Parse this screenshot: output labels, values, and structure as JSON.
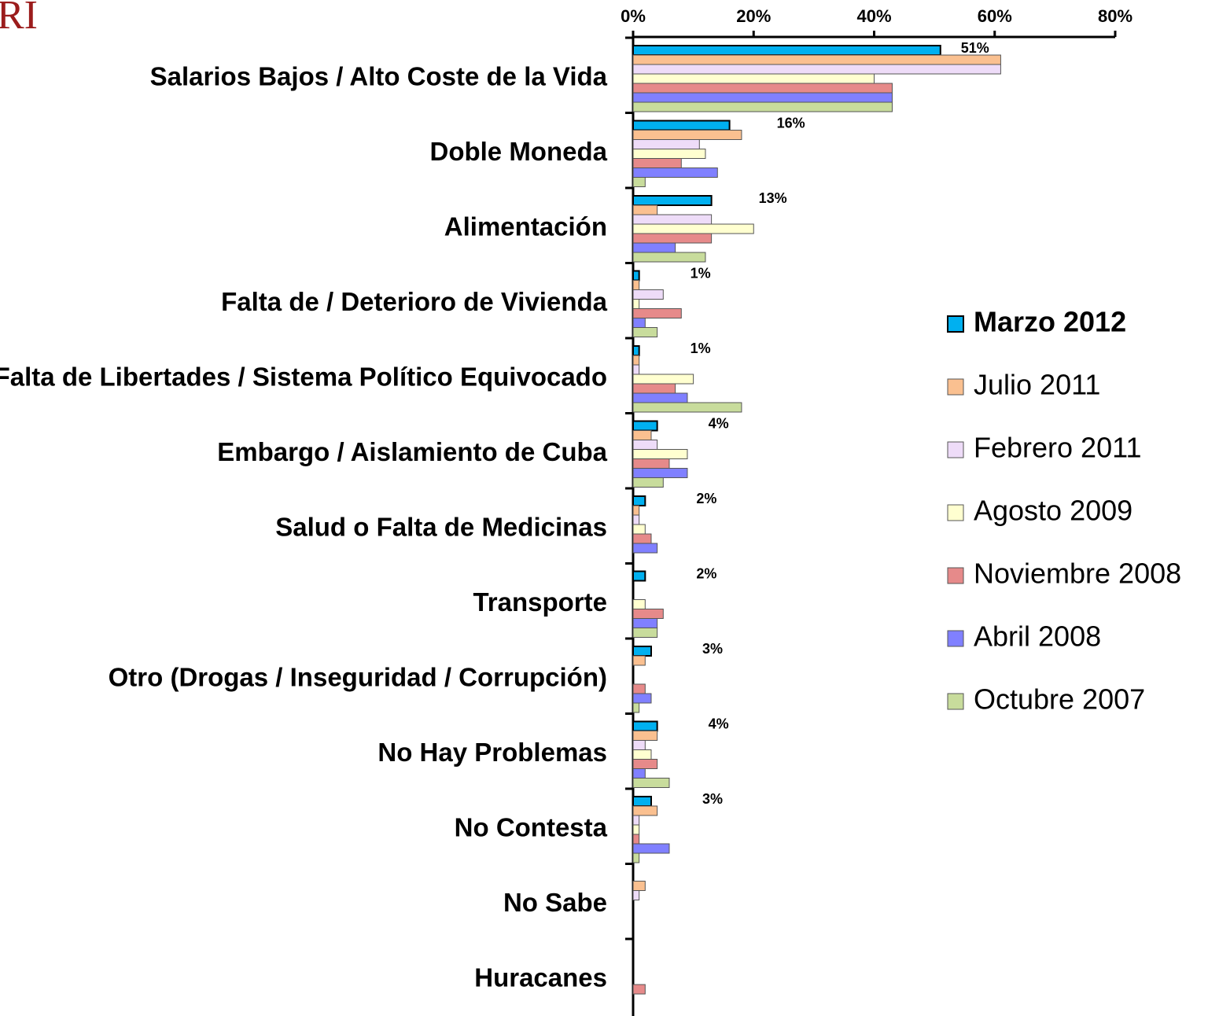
{
  "chart_data": {
    "type": "bar",
    "orientation": "horizontal",
    "logo": "RI",
    "categories": [
      "Salarios Bajos / Alto Coste de la Vida",
      "Doble Moneda",
      "Alimentación",
      "Falta de / Deterioro de Vivienda",
      "Falta de Libertades / Sistema Político Equivocado",
      "Embargo / Aislamiento de Cuba",
      "Salud o Falta de Medicinas",
      "Transporte",
      "Otro (Drogas / Inseguridad / Corrupción)",
      "No Hay Problemas",
      "No Contesta",
      "No Sabe",
      "Huracanes"
    ],
    "series": [
      {
        "name": "Marzo 2012",
        "color": "#00b0f0",
        "values": [
          51,
          16,
          13,
          1,
          1,
          4,
          2,
          2,
          3,
          4,
          3,
          0,
          0
        ],
        "value_labels": [
          "51%",
          "16%",
          "13%",
          "1%",
          "1%",
          "4%",
          "2%",
          "2%",
          "3%",
          "4%",
          "3%",
          null,
          null
        ]
      },
      {
        "name": "Julio 2011",
        "color": "#fac090",
        "values": [
          61,
          18,
          4,
          1,
          1,
          3,
          1,
          0,
          2,
          4,
          4,
          2,
          0
        ]
      },
      {
        "name": "Febrero 2011",
        "color": "#eedcf8",
        "values": [
          61,
          11,
          13,
          5,
          1,
          4,
          1,
          0,
          0,
          2,
          1,
          1,
          0
        ]
      },
      {
        "name": "Agosto 2009",
        "color": "#ffffd0",
        "values": [
          40,
          12,
          20,
          1,
          10,
          9,
          2,
          2,
          0,
          3,
          1,
          0,
          0
        ]
      },
      {
        "name": "Noviembre 2008",
        "color": "#e68a8a",
        "values": [
          43,
          8,
          13,
          8,
          7,
          6,
          3,
          5,
          2,
          4,
          1,
          0,
          2
        ]
      },
      {
        "name": "Abril 2008",
        "color": "#8080ff",
        "values": [
          43,
          14,
          7,
          2,
          9,
          9,
          4,
          4,
          3,
          2,
          6,
          0,
          0
        ]
      },
      {
        "name": "Octubre 2007",
        "color": "#c8dc9c",
        "values": [
          43,
          2,
          12,
          4,
          18,
          5,
          0,
          4,
          1,
          6,
          1,
          0,
          0
        ]
      }
    ],
    "xlim": [
      0,
      80
    ],
    "xticks": [
      {
        "value": 0,
        "label": "0%"
      },
      {
        "value": 20,
        "label": "20%"
      },
      {
        "value": 40,
        "label": "40%"
      },
      {
        "value": 60,
        "label": "60%"
      },
      {
        "value": 80,
        "label": "80%"
      }
    ],
    "legend": "right"
  }
}
